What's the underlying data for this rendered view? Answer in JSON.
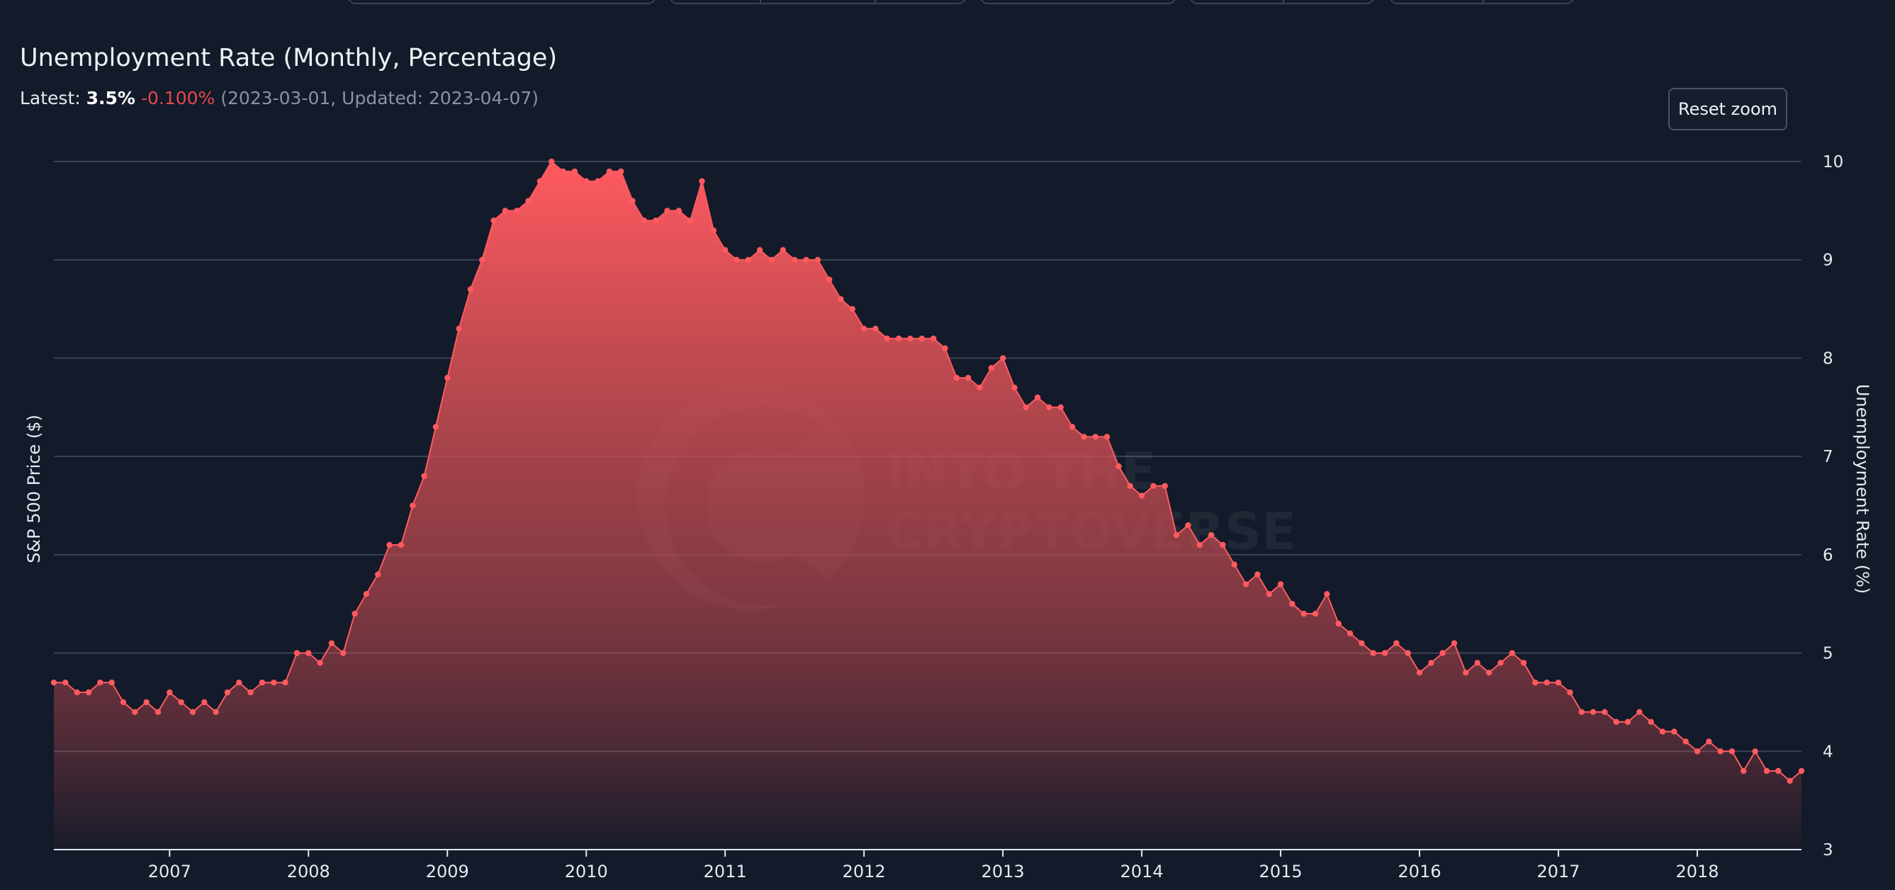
{
  "header": {
    "title": "Unemployment Rate (Monthly, Percentage)",
    "latest_label": "Latest:",
    "latest_value": "3.5%",
    "latest_change": "-0.100%",
    "latest_meta": "(2023-03-01, Updated: 2023-04-07)"
  },
  "controls": {
    "reset_zoom_label": "Reset zoom"
  },
  "watermark": {
    "line1": "INTO THE",
    "line2": "CRYPTOVERSE"
  },
  "colors": {
    "background": "#131a29",
    "series": "#ff5a5f",
    "grid": "#3b4352"
  },
  "chart_data": {
    "type": "area",
    "title": "Unemployment Rate (Monthly, Percentage)",
    "xlabel": "",
    "ylabel_left": "S&P 500 Price ($)",
    "ylabel_right": "Unemployment Rate (%)",
    "ylim": [
      3,
      10
    ],
    "yticks": [
      "10",
      "9",
      "8",
      "7",
      "6",
      "5",
      "4",
      "3"
    ],
    "xticks": [
      "2007",
      "2008",
      "2009",
      "2010",
      "2011",
      "2012",
      "2013",
      "2014",
      "2015",
      "2016",
      "2017",
      "2018"
    ],
    "x_start": "2006-03",
    "x_end": "2018-10",
    "grid": true,
    "series": [
      {
        "name": "Unemployment Rate (%)",
        "color": "#ff5a5f",
        "values": [
          4.7,
          4.7,
          4.6,
          4.6,
          4.7,
          4.7,
          4.5,
          4.4,
          4.5,
          4.4,
          4.6,
          4.5,
          4.4,
          4.5,
          4.4,
          4.6,
          4.7,
          4.6,
          4.7,
          4.7,
          4.7,
          5.0,
          5.0,
          4.9,
          5.1,
          5.0,
          5.4,
          5.6,
          5.8,
          6.1,
          6.1,
          6.5,
          6.8,
          7.3,
          7.8,
          8.3,
          8.7,
          9.0,
          9.4,
          9.5,
          9.5,
          9.6,
          9.8,
          10.0,
          9.9,
          9.9,
          9.8,
          9.8,
          9.9,
          9.9,
          9.6,
          9.4,
          9.4,
          9.5,
          9.5,
          9.4,
          9.8,
          9.3,
          9.1,
          9.0,
          9.0,
          9.1,
          9.0,
          9.1,
          9.0,
          9.0,
          9.0,
          8.8,
          8.6,
          8.5,
          8.3,
          8.3,
          8.2,
          8.2,
          8.2,
          8.2,
          8.2,
          8.1,
          7.8,
          7.8,
          7.7,
          7.9,
          8.0,
          7.7,
          7.5,
          7.6,
          7.5,
          7.5,
          7.3,
          7.2,
          7.2,
          7.2,
          6.9,
          6.7,
          6.6,
          6.7,
          6.7,
          6.2,
          6.3,
          6.1,
          6.2,
          6.1,
          5.9,
          5.7,
          5.8,
          5.6,
          5.7,
          5.5,
          5.4,
          5.4,
          5.6,
          5.3,
          5.2,
          5.1,
          5.0,
          5.0,
          5.1,
          5.0,
          4.8,
          4.9,
          5.0,
          5.1,
          4.8,
          4.9,
          4.8,
          4.9,
          5.0,
          4.9,
          4.7,
          4.7,
          4.7,
          4.6,
          4.4,
          4.4,
          4.4,
          4.3,
          4.3,
          4.4,
          4.3,
          4.2,
          4.2,
          4.1,
          4.0,
          4.1,
          4.0,
          4.0,
          3.8,
          4.0,
          3.8,
          3.8,
          3.7,
          3.8
        ]
      }
    ]
  }
}
